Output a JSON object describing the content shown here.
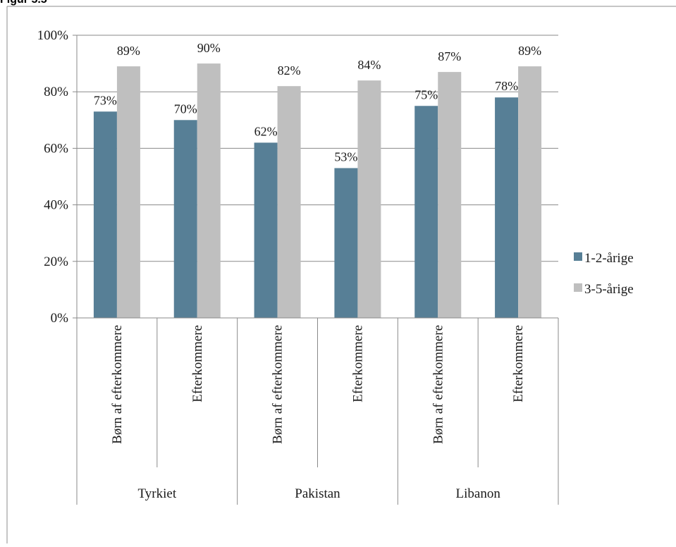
{
  "header_fragment": "Figur 5.5",
  "chart_data": {
    "type": "bar",
    "groups": [
      {
        "label": "Tyrkiet",
        "categories": [
          "Børn af efterkommere",
          "Efterkommere"
        ]
      },
      {
        "label": "Pakistan",
        "categories": [
          "Børn af efterkommere",
          "Efterkommere"
        ]
      },
      {
        "label": "Libanon",
        "categories": [
          "Børn af efterkommere",
          "Efterkommere"
        ]
      }
    ],
    "categories": [
      "Børn af efterkommere",
      "Efterkommere",
      "Børn af efterkommere",
      "Efterkommere",
      "Børn af efterkommere",
      "Efterkommere"
    ],
    "series": [
      {
        "name": "1-2-årige",
        "color": "#577f96",
        "values": [
          73,
          70,
          62,
          53,
          75,
          78
        ],
        "labels": [
          "73%",
          "70%",
          "62%",
          "53%",
          "75%",
          "78%"
        ]
      },
      {
        "name": "3-5-årige",
        "color": "#bfbfbf",
        "values": [
          89,
          90,
          82,
          84,
          87,
          89
        ],
        "labels": [
          "89%",
          "90%",
          "82%",
          "84%",
          "87%",
          "89%"
        ]
      }
    ],
    "yticks": [
      "0%",
      "20%",
      "40%",
      "60%",
      "80%",
      "100%"
    ],
    "ylim": [
      0,
      100
    ],
    "grid": true,
    "legend": "right",
    "xlabel": "",
    "ylabel": ""
  }
}
